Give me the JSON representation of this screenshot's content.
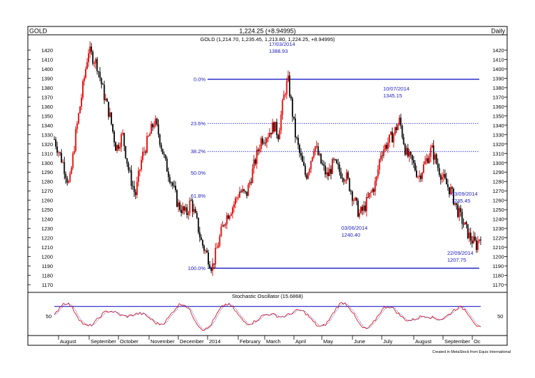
{
  "header": {
    "symbol": "GOLD",
    "last_change": "1,224.25 (+8.94995)",
    "period": "Daily"
  },
  "price_panel": {
    "legend": "GOLD (1,214.70, 1,235.45, 1,213.80, 1,224.25, +8.94995)"
  },
  "stochastic_panel": {
    "title": "Stochastic Oscillator (15.6868)"
  },
  "footer": {
    "credit": "Created in MetaStock from Equis International"
  },
  "chart_data": {
    "type": "candlestick",
    "y_axis": {
      "ticks": [
        1170,
        1180,
        1190,
        1200,
        1210,
        1220,
        1230,
        1240,
        1250,
        1260,
        1270,
        1280,
        1290,
        1300,
        1310,
        1320,
        1330,
        1340,
        1350,
        1360,
        1370,
        1380,
        1390,
        1400,
        1410,
        1420
      ],
      "range": [
        1165,
        1428
      ]
    },
    "x_axis": {
      "ticks": [
        "August",
        "September",
        "October",
        "November",
        "December",
        "2014",
        "February",
        "March",
        "April",
        "May",
        "June",
        "July",
        "August",
        "September",
        "Oc"
      ]
    },
    "fibonacci_levels": [
      {
        "label": "0.0%",
        "price": 1388.93
      },
      {
        "label": "23.6%",
        "price": 1341.9
      },
      {
        "label": "38.2%",
        "price": 1311.9
      },
      {
        "label": "50.0%",
        "price": 1289.1
      },
      {
        "label": "61.8%",
        "price": 1264.6
      },
      {
        "label": "100.0%",
        "price": 1187.6
      }
    ],
    "annotations": [
      {
        "date": "17/03/2014",
        "price": "1388.93"
      },
      {
        "date": "10/07/2014",
        "price": "1345.15"
      },
      {
        "date": "03/06/2014",
        "price": "1240.40"
      },
      {
        "date": "03/09/2014",
        "price": "1235.45"
      },
      {
        "date": "22/09/2014",
        "price": "1207.75"
      }
    ],
    "price_path": [
      [
        0,
        1325
      ],
      [
        0.02,
        1300
      ],
      [
        0.035,
        1275
      ],
      [
        0.05,
        1330
      ],
      [
        0.07,
        1390
      ],
      [
        0.08,
        1420
      ],
      [
        0.1,
        1405
      ],
      [
        0.115,
        1375
      ],
      [
        0.13,
        1350
      ],
      [
        0.145,
        1315
      ],
      [
        0.16,
        1330
      ],
      [
        0.175,
        1290
      ],
      [
        0.19,
        1265
      ],
      [
        0.205,
        1305
      ],
      [
        0.22,
        1325
      ],
      [
        0.235,
        1345
      ],
      [
        0.245,
        1330
      ],
      [
        0.26,
        1300
      ],
      [
        0.275,
        1280
      ],
      [
        0.29,
        1255
      ],
      [
        0.31,
        1245
      ],
      [
        0.32,
        1260
      ],
      [
        0.335,
        1235
      ],
      [
        0.345,
        1215
      ],
      [
        0.36,
        1200
      ],
      [
        0.37,
        1188
      ],
      [
        0.385,
        1215
      ],
      [
        0.4,
        1240
      ],
      [
        0.42,
        1255
      ],
      [
        0.435,
        1270
      ],
      [
        0.45,
        1265
      ],
      [
        0.47,
        1300
      ],
      [
        0.485,
        1325
      ],
      [
        0.5,
        1330
      ],
      [
        0.515,
        1340
      ],
      [
        0.525,
        1330
      ],
      [
        0.54,
        1375
      ],
      [
        0.548,
        1388
      ],
      [
        0.555,
        1365
      ],
      [
        0.565,
        1330
      ],
      [
        0.575,
        1310
      ],
      [
        0.59,
        1285
      ],
      [
        0.6,
        1300
      ],
      [
        0.61,
        1320
      ],
      [
        0.625,
        1300
      ],
      [
        0.64,
        1285
      ],
      [
        0.655,
        1300
      ],
      [
        0.67,
        1290
      ],
      [
        0.685,
        1285
      ],
      [
        0.7,
        1265
      ],
      [
        0.715,
        1245
      ],
      [
        0.725,
        1250
      ],
      [
        0.74,
        1265
      ],
      [
        0.755,
        1280
      ],
      [
        0.765,
        1310
      ],
      [
        0.78,
        1320
      ],
      [
        0.795,
        1330
      ],
      [
        0.81,
        1345
      ],
      [
        0.825,
        1310
      ],
      [
        0.84,
        1300
      ],
      [
        0.855,
        1285
      ],
      [
        0.87,
        1300
      ],
      [
        0.885,
        1315
      ],
      [
        0.9,
        1295
      ],
      [
        0.915,
        1280
      ],
      [
        0.93,
        1270
      ],
      [
        0.945,
        1250
      ],
      [
        0.96,
        1235
      ],
      [
        0.975,
        1220
      ],
      [
        0.99,
        1212
      ],
      [
        1,
        1224
      ]
    ],
    "stochastic": {
      "reference_line": 80,
      "y_ticks": [
        50
      ],
      "range": [
        0,
        100
      ]
    }
  }
}
